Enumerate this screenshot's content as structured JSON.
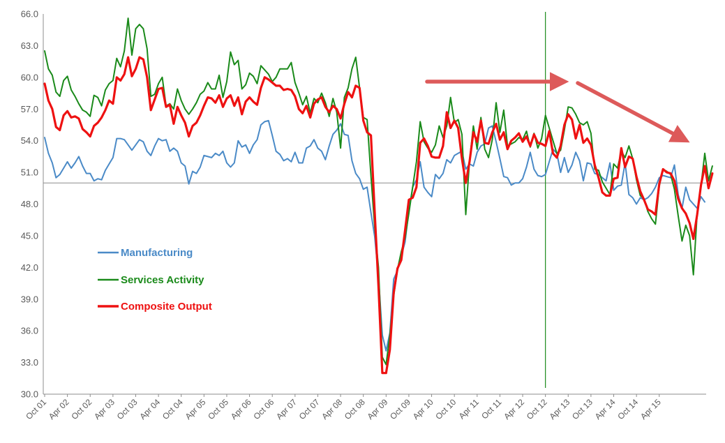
{
  "chart_data": {
    "type": "line",
    "title": "",
    "xlabel": "",
    "ylabel": "",
    "ylim": [
      30.0,
      66.0
    ],
    "y_ticks": [
      "30.0",
      "33.0",
      "36.0",
      "39.0",
      "42.0",
      "45.0",
      "48.0",
      "51.0",
      "54.0",
      "57.0",
      "60.0",
      "63.0",
      "66.0"
    ],
    "x_tick_labels": [
      "Oct 01",
      "Apr 02",
      "Oct 02",
      "Apr 03",
      "Oct 03",
      "Apr 04",
      "Oct 04",
      "Apr 05",
      "Oct 05",
      "Apr 06",
      "Oct 06",
      "Apr 07",
      "Oct 07",
      "Apr 08",
      "Oct 08",
      "Apr 09",
      "Oct 09",
      "Apr 10",
      "Oct 10",
      "Apr 11",
      "Oct 11",
      "Apr 12",
      "Oct 12",
      "Apr 13",
      "Oct 13",
      "Apr 14",
      "Oct 14",
      "Apr 15"
    ],
    "x_start": "Oct 01",
    "x_end": "Jul 15",
    "reference_line_y": 50.0,
    "vertical_marker_x": "Oct 12",
    "grid": false,
    "legend_position": "left-center",
    "annotations": [
      "right-arrow-to-Oct-12",
      "down-right-arrow-after-Oct-12"
    ],
    "series": [
      {
        "name": "Manufacturing",
        "color": "#4a8ac7",
        "values": [
          54.3,
          52.8,
          51.9,
          50.5,
          50.8,
          51.4,
          52.0,
          51.4,
          51.9,
          52.5,
          51.6,
          50.9,
          50.9,
          50.2,
          50.4,
          50.3,
          51.2,
          51.8,
          52.4,
          54.2,
          54.2,
          54.1,
          53.6,
          53.1,
          53.6,
          54.1,
          53.9,
          53.0,
          52.6,
          53.5,
          54.2,
          54.0,
          54.1,
          53.0,
          53.3,
          53.0,
          51.9,
          51.6,
          49.9,
          51.1,
          50.9,
          51.5,
          52.6,
          52.5,
          52.4,
          52.8,
          52.6,
          53.0,
          51.9,
          51.5,
          51.9,
          54.0,
          53.4,
          53.6,
          52.8,
          53.6,
          54.1,
          55.5,
          55.8,
          55.9,
          54.5,
          53.0,
          52.7,
          52.1,
          52.3,
          52.0,
          52.9,
          51.9,
          51.9,
          53.3,
          53.5,
          54.1,
          53.3,
          53.0,
          52.2,
          53.5,
          54.6,
          55.0,
          55.6,
          54.6,
          54.5,
          52.1,
          50.9,
          50.4,
          49.4,
          49.6,
          47.2,
          44.9,
          41.1,
          35.6,
          34.1,
          35.8,
          40.9,
          41.7,
          43.1,
          44.4,
          47.4,
          49.6,
          50.3,
          52.0,
          49.6,
          49.1,
          48.7,
          50.8,
          50.4,
          50.9,
          52.2,
          51.9,
          52.6,
          52.8,
          53.0,
          51.3,
          51.8,
          51.6,
          52.9,
          53.5,
          53.7,
          55.2,
          55.4,
          53.9,
          52.3,
          50.6,
          50.5,
          49.8,
          50.0,
          50.0,
          50.4,
          51.5,
          52.9,
          51.3,
          50.7,
          50.6,
          50.8,
          52.0,
          53.2,
          52.8,
          51.0,
          52.4,
          51.0,
          51.7,
          52.9,
          52.1,
          50.2,
          51.9,
          51.8,
          50.9,
          50.8,
          50.5,
          50.2,
          51.9,
          49.3,
          49.7,
          49.8,
          51.9,
          48.9,
          48.6,
          48.0,
          48.6,
          48.4,
          48.6,
          49.0,
          49.6,
          50.5,
          50.7,
          50.6,
          50.5,
          51.7,
          48.9,
          47.6,
          49.6,
          48.4,
          48.0,
          47.6,
          48.7,
          48.2
        ]
      },
      {
        "name": "Services Activity",
        "color": "#1a8a1a",
        "values": [
          62.5,
          60.8,
          60.2,
          58.6,
          58.2,
          59.7,
          60.1,
          58.8,
          58.2,
          57.5,
          56.9,
          56.7,
          56.3,
          58.3,
          58.1,
          57.3,
          58.8,
          59.4,
          59.7,
          61.8,
          61.0,
          62.5,
          65.6,
          62.1,
          64.6,
          65.0,
          64.6,
          62.7,
          58.2,
          58.4,
          59.4,
          60.0,
          57.3,
          57.5,
          57.0,
          58.9,
          57.8,
          57.0,
          56.5,
          57.0,
          57.6,
          58.4,
          58.7,
          59.5,
          58.9,
          58.9,
          60.2,
          58.1,
          59.6,
          62.4,
          61.2,
          61.6,
          58.9,
          59.3,
          60.4,
          60.1,
          59.4,
          61.1,
          60.7,
          60.3,
          59.6,
          60.0,
          60.8,
          60.8,
          60.8,
          61.4,
          59.5,
          58.5,
          57.4,
          58.2,
          56.6,
          58.0,
          57.6,
          58.5,
          57.6,
          56.3,
          58.0,
          56.7,
          53.3,
          58.1,
          59.0,
          60.8,
          61.9,
          59.0,
          56.2,
          56.0,
          50.7,
          45.8,
          42.0,
          33.5,
          32.8,
          35.6,
          39.3,
          41.8,
          43.5,
          44.8,
          47.1,
          49.6,
          52.0,
          55.8,
          53.9,
          53.3,
          52.9,
          53.6,
          55.4,
          54.3,
          55.4,
          58.1,
          55.7,
          56.0,
          54.6,
          47.0,
          52.1,
          55.4,
          53.2,
          56.2,
          53.2,
          52.4,
          54.1,
          57.6,
          54.8,
          56.9,
          53.5,
          53.7,
          53.9,
          54.3,
          54.1,
          54.9,
          53.4,
          54.7,
          53.3,
          54.2,
          56.4,
          55.2,
          54.0,
          52.8,
          53.1,
          55.0,
          57.2,
          57.1,
          56.5,
          55.7,
          55.5,
          55.8,
          54.7,
          51.3,
          51.2,
          50.1,
          49.5,
          48.9,
          51.8,
          51.4,
          53.0,
          52.4,
          53.5,
          52.3,
          50.3,
          48.8,
          48.5,
          47.3,
          46.6,
          46.1,
          49.7,
          51.3,
          51.1,
          50.8,
          49.4,
          46.9,
          44.5,
          46.0,
          45.0,
          41.3,
          47.1,
          49.7,
          52.8,
          50.2,
          51.6
        ]
      },
      {
        "name": "Composite Output",
        "color": "#ee1111",
        "values": [
          59.4,
          57.8,
          57.0,
          55.3,
          55.0,
          56.4,
          56.8,
          56.2,
          56.3,
          56.1,
          55.1,
          54.8,
          54.4,
          55.4,
          55.7,
          56.2,
          56.9,
          57.8,
          57.5,
          60.0,
          59.7,
          60.3,
          61.9,
          60.1,
          60.8,
          61.9,
          61.7,
          60.0,
          56.9,
          57.9,
          58.9,
          59.0,
          57.2,
          57.4,
          55.6,
          57.2,
          56.4,
          55.7,
          54.4,
          55.4,
          55.7,
          56.4,
          57.3,
          58.1,
          58.0,
          57.6,
          58.3,
          57.2,
          58.0,
          58.3,
          57.3,
          58.1,
          56.5,
          57.7,
          58.1,
          57.7,
          57.4,
          59.0,
          60.0,
          59.8,
          59.5,
          59.2,
          59.2,
          58.8,
          58.9,
          58.8,
          58.2,
          57.0,
          56.6,
          57.3,
          56.2,
          57.5,
          57.9,
          58.1,
          57.2,
          56.7,
          57.3,
          57.0,
          56.1,
          57.5,
          58.6,
          58.1,
          59.2,
          59.0,
          55.9,
          54.8,
          54.5,
          47.2,
          40.2,
          32.0,
          32.0,
          34.2,
          39.6,
          41.9,
          42.7,
          45.5,
          48.4,
          48.6,
          49.6,
          53.8,
          54.2,
          53.5,
          52.5,
          52.4,
          52.4,
          53.5,
          56.7,
          55.2,
          55.9,
          55.2,
          52.3,
          50.0,
          52.0,
          54.8,
          53.9,
          55.9,
          53.8,
          53.7,
          54.8,
          55.6,
          54.1,
          54.8,
          53.2,
          54.0,
          54.3,
          54.7,
          53.9,
          54.4,
          53.5,
          54.6,
          53.8,
          53.7,
          53.5,
          54.9,
          52.8,
          52.4,
          53.5,
          55.5,
          56.5,
          56.0,
          54.2,
          55.5,
          53.8,
          54.2,
          53.6,
          51.7,
          50.5,
          49.1,
          48.8,
          48.8,
          50.4,
          50.5,
          53.3,
          51.5,
          52.5,
          52.3,
          50.6,
          49.2,
          48.4,
          47.5,
          47.3,
          47.0,
          49.9,
          51.3,
          51.0,
          50.9,
          50.2,
          48.5,
          47.6,
          47.1,
          46.2,
          44.7,
          47.0,
          49.8,
          51.6,
          49.5,
          50.9
        ]
      }
    ]
  }
}
